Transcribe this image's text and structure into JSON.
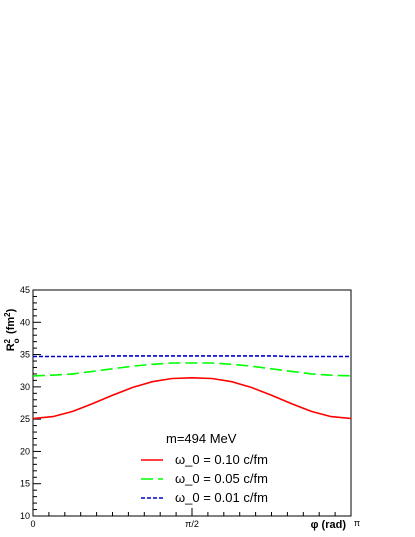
{
  "chart_data": {
    "type": "line",
    "xlabel": "φ (rad)",
    "ylabel": "R_o^2 (fm^2)",
    "ylim": [
      10,
      45
    ],
    "xlim": [
      0,
      3.14159
    ],
    "yticks": [
      10,
      15,
      20,
      25,
      30,
      35,
      40,
      45
    ],
    "yticks_labels": [
      "10",
      "15",
      "20",
      "25",
      "30",
      "35",
      "40",
      "45"
    ],
    "xticks": [
      {
        "value": 0,
        "label": "0"
      },
      {
        "value": 1.5708,
        "label": "π/2"
      },
      {
        "value": 3.14159,
        "label": "π"
      }
    ],
    "legend": {
      "header": "m=494 MeV",
      "placement": "bottom-center"
    },
    "x": [
      0,
      0.1963,
      0.3927,
      0.589,
      0.7854,
      0.9817,
      1.1781,
      1.3744,
      1.5708,
      1.7671,
      1.9635,
      2.1598,
      2.3562,
      2.5525,
      2.7489,
      2.9452,
      3.1416
    ],
    "series": [
      {
        "name": "ω_0 = 0.10 c/fm",
        "color": "#ff0000",
        "dash": "solid",
        "values": [
          25.1,
          25.4,
          26.2,
          27.4,
          28.7,
          29.9,
          30.8,
          31.3,
          31.4,
          31.3,
          30.8,
          29.9,
          28.7,
          27.4,
          26.2,
          25.4,
          25.1
        ]
      },
      {
        "name": "ω_0 = 0.05 c/fm",
        "color": "#00ff00",
        "dash": "long-dash",
        "values": [
          31.7,
          31.8,
          32.0,
          32.4,
          32.8,
          33.2,
          33.5,
          33.7,
          33.7,
          33.7,
          33.5,
          33.2,
          32.8,
          32.4,
          32.0,
          31.8,
          31.7
        ]
      },
      {
        "name": "ω_0 = 0.01 c/fm",
        "color": "#0000cc",
        "dash": "short-dash",
        "values": [
          34.7,
          34.7,
          34.7,
          34.7,
          34.8,
          34.8,
          34.8,
          34.8,
          34.8,
          34.8,
          34.8,
          34.8,
          34.8,
          34.7,
          34.7,
          34.7,
          34.7
        ]
      }
    ]
  }
}
